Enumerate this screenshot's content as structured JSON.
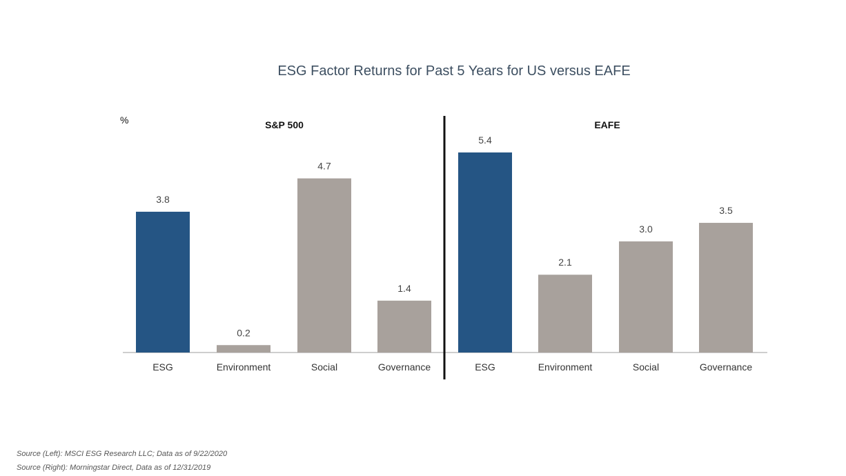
{
  "title": "ESG Factor Returns for Past 5 Years for US versus EAFE",
  "colors": {
    "highlight": "#255584",
    "default": "#a8a19c"
  },
  "chart_data": [
    {
      "type": "bar",
      "title": "S&P 500",
      "ylabel": "%",
      "categories": [
        "ESG",
        "Environment",
        "Social",
        "Governance"
      ],
      "values": [
        3.8,
        0.2,
        4.7,
        1.4
      ],
      "value_labels": [
        "3.8",
        "0.2",
        "4.7",
        "1.4"
      ],
      "highlight": [
        true,
        false,
        false,
        false
      ],
      "ylim": [
        0,
        6
      ]
    },
    {
      "type": "bar",
      "title": "EAFE",
      "ylabel": "",
      "categories": [
        "ESG",
        "Environment",
        "Social",
        "Governance"
      ],
      "values": [
        5.4,
        2.1,
        3.0,
        3.5
      ],
      "value_labels": [
        "5.4",
        "2.1",
        "3.0",
        "3.5"
      ],
      "highlight": [
        true,
        false,
        false,
        false
      ],
      "ylim": [
        0,
        6
      ]
    }
  ],
  "sources": [
    "Source (Left): MSCI ESG Research LLC; Data as of 9/22/2020",
    "Source (Right): Morningstar Direct, Data as of 12/31/2019"
  ]
}
